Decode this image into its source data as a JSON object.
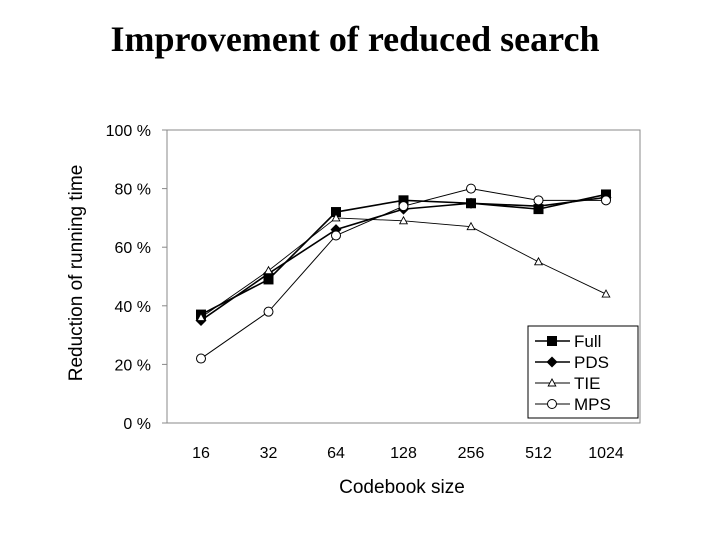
{
  "slide": {
    "title": "Improvement of reduced search"
  },
  "chart_data": {
    "type": "line",
    "title": "Improvement of reduced search",
    "xlabel": "Codebook size",
    "ylabel": "Reduction of running time",
    "categories": [
      "16",
      "32",
      "64",
      "128",
      "256",
      "512",
      "1024"
    ],
    "yticks": [
      "0 %",
      "20 %",
      "40 %",
      "60 %",
      "80 %",
      "100 %"
    ],
    "ylim": [
      0,
      100
    ],
    "grid": false,
    "legend_position": "bottom-right",
    "series": [
      {
        "name": "Full",
        "marker": "square",
        "values": [
          37,
          49,
          72,
          76,
          75,
          73,
          78
        ]
      },
      {
        "name": "PDS",
        "marker": "diamond",
        "values": [
          35,
          51,
          66,
          73,
          75,
          74,
          77
        ]
      },
      {
        "name": "TIE",
        "marker": "triangle",
        "values": [
          36,
          52,
          70,
          69,
          67,
          55,
          44
        ]
      },
      {
        "name": "MPS",
        "marker": "circle",
        "values": [
          22,
          38,
          64,
          74,
          80,
          76,
          76
        ]
      }
    ]
  }
}
